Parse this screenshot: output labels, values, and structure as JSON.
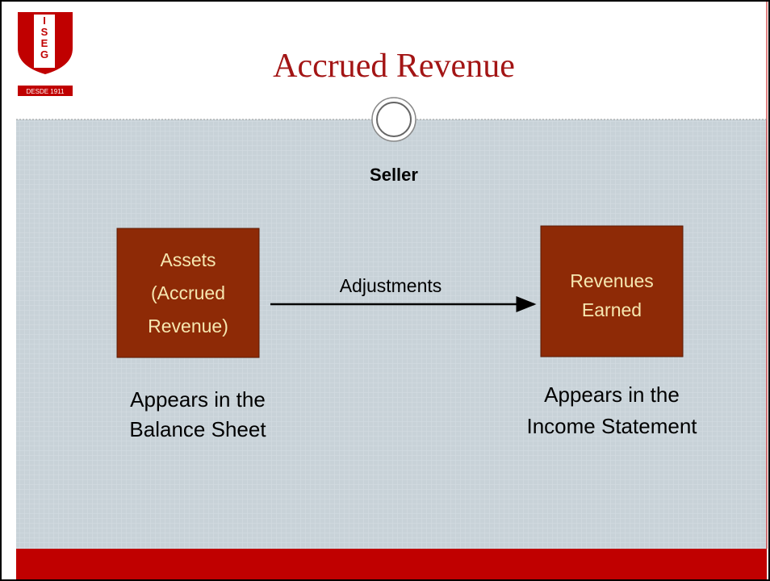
{
  "header": {
    "title": "Accrued Revenue",
    "logo": {
      "letters": [
        "I",
        "S",
        "E",
        "G"
      ],
      "since": "DESDE 1911"
    }
  },
  "heading": "Seller",
  "nodes": [
    {
      "lines": [
        "Assets",
        "(Accrued",
        "Revenue)"
      ],
      "caption": [
        "Appears in the",
        "Balance Sheet"
      ]
    },
    {
      "lines": [
        "Revenues",
        "Earned"
      ],
      "caption": [
        "Appears in the",
        "Income Statement"
      ]
    }
  ],
  "edges": [
    {
      "label": "Adjustments"
    }
  ]
}
